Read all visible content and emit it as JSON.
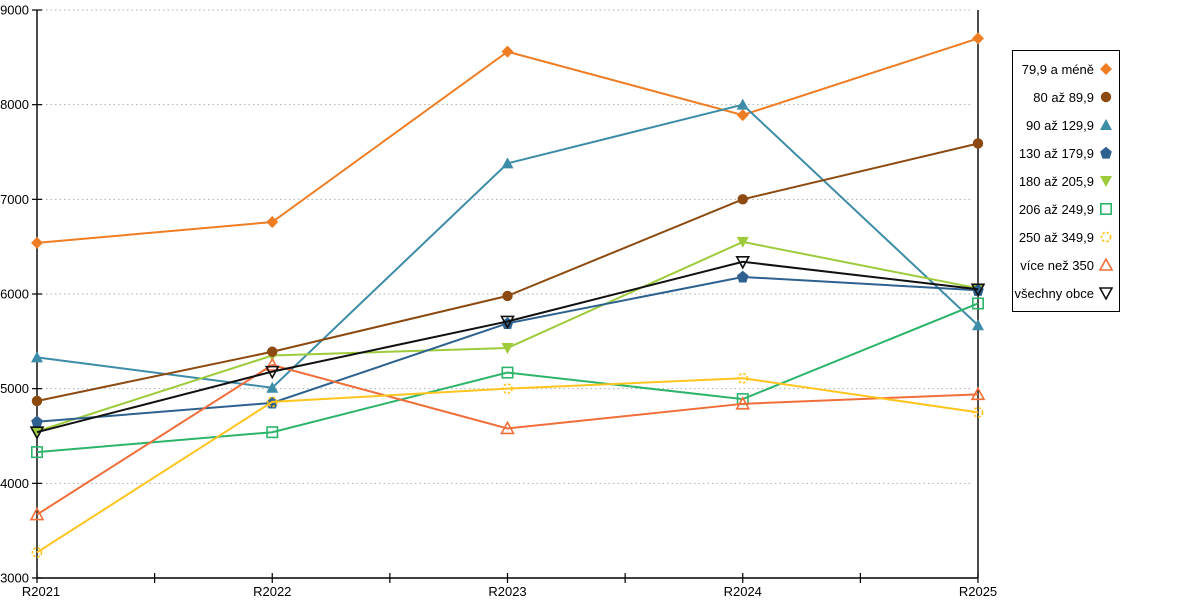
{
  "chart_data": {
    "type": "line",
    "title": "",
    "xlabel": "",
    "ylabel": "",
    "categories": [
      "R2021",
      "R2022",
      "R2023",
      "R2024",
      "R2025"
    ],
    "ylim": [
      3000,
      9000
    ],
    "ytick_step": 1000,
    "yticks": [
      3000,
      4000,
      5000,
      6000,
      7000,
      8000,
      9000
    ],
    "grid": "horizontal-dotted",
    "legend_position": "right",
    "background": "#FFFFFF",
    "axis_color": "#000000",
    "grid_color": "#ADADAD",
    "series": [
      {
        "name": "79,9 a méně",
        "marker": "diamond",
        "style": "filled",
        "color": "#EE7D23",
        "values": [
          6540,
          6760,
          8560,
          7890,
          8700
        ]
      },
      {
        "name": "80 až 89,9",
        "marker": "circle",
        "style": "filled",
        "color": "#8C4A10",
        "values": [
          4870,
          5390,
          5980,
          7000,
          7590
        ]
      },
      {
        "name": "90 až 129,9",
        "marker": "triangle-up",
        "style": "filled",
        "color": "#3D8CA8",
        "values": [
          5330,
          5010,
          7380,
          8000,
          5670
        ]
      },
      {
        "name": "130 až 179,9",
        "marker": "pentagon",
        "style": "filled",
        "color": "#2E618F",
        "values": [
          4650,
          4850,
          5690,
          6180,
          6040
        ]
      },
      {
        "name": "180 až 205,9",
        "marker": "triangle-down",
        "style": "filled",
        "color": "#9DCB3B",
        "values": [
          4550,
          5350,
          5430,
          6550,
          6060
        ]
      },
      {
        "name": "206 až 249,9",
        "marker": "square",
        "style": "open",
        "color": "#2CB56A",
        "values": [
          4330,
          4540,
          5170,
          4890,
          5900
        ]
      },
      {
        "name": "250 až 349,9",
        "marker": "circle-dashed",
        "style": "open",
        "color": "#FFC41E",
        "values": [
          3270,
          4860,
          5000,
          5110,
          4750
        ]
      },
      {
        "name": "více než 350",
        "marker": "triangle-up",
        "style": "open",
        "color": "#F06E3A",
        "values": [
          3670,
          5250,
          4580,
          4840,
          4940
        ]
      },
      {
        "name": "všechny obce",
        "marker": "triangle-down",
        "style": "open",
        "color": "#111111",
        "values": [
          4540,
          5180,
          5710,
          6340,
          6050
        ]
      }
    ]
  }
}
